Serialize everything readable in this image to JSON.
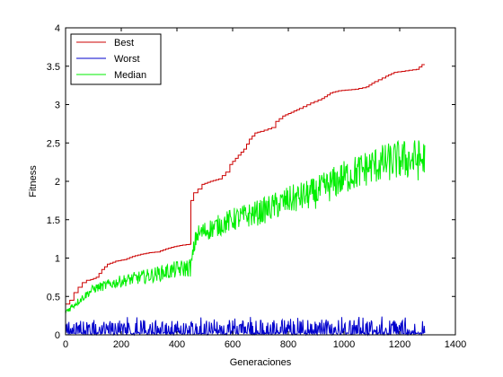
{
  "chart_data": {
    "type": "line",
    "title": "",
    "xlabel": "Generaciones",
    "ylabel": "Fitness",
    "xlim": [
      0,
      1400
    ],
    "ylim": [
      0,
      4
    ],
    "x_ticks": [
      0,
      200,
      400,
      600,
      800,
      1000,
      1200,
      1400
    ],
    "y_ticks": [
      0,
      0.5,
      1,
      1.5,
      2,
      2.5,
      3,
      3.5,
      4
    ],
    "y_tick_labels": [
      "0",
      "0.5",
      "1",
      "1.5",
      "2",
      "2.5",
      "3",
      "3.5",
      "4"
    ],
    "grid": false,
    "legend_position": "top-left",
    "series": [
      {
        "name": "Best",
        "color": "#cc0000",
        "step": true,
        "points": [
          [
            0,
            0.4
          ],
          [
            15,
            0.45
          ],
          [
            30,
            0.55
          ],
          [
            45,
            0.62
          ],
          [
            60,
            0.68
          ],
          [
            75,
            0.71
          ],
          [
            90,
            0.72
          ],
          [
            110,
            0.75
          ],
          [
            130,
            0.85
          ],
          [
            150,
            0.92
          ],
          [
            180,
            0.96
          ],
          [
            210,
            0.98
          ],
          [
            240,
            1.02
          ],
          [
            270,
            1.05
          ],
          [
            300,
            1.07
          ],
          [
            330,
            1.08
          ],
          [
            360,
            1.12
          ],
          [
            390,
            1.15
          ],
          [
            420,
            1.17
          ],
          [
            445,
            1.18
          ],
          [
            450,
            1.75
          ],
          [
            460,
            1.85
          ],
          [
            475,
            1.9
          ],
          [
            490,
            1.96
          ],
          [
            520,
            2.0
          ],
          [
            550,
            2.03
          ],
          [
            575,
            2.12
          ],
          [
            590,
            2.22
          ],
          [
            610,
            2.3
          ],
          [
            640,
            2.42
          ],
          [
            660,
            2.55
          ],
          [
            680,
            2.63
          ],
          [
            700,
            2.65
          ],
          [
            740,
            2.7
          ],
          [
            755,
            2.78
          ],
          [
            780,
            2.85
          ],
          [
            810,
            2.9
          ],
          [
            840,
            2.95
          ],
          [
            880,
            3.02
          ],
          [
            920,
            3.08
          ],
          [
            950,
            3.15
          ],
          [
            980,
            3.18
          ],
          [
            1040,
            3.2
          ],
          [
            1080,
            3.23
          ],
          [
            1110,
            3.3
          ],
          [
            1150,
            3.37
          ],
          [
            1180,
            3.42
          ],
          [
            1220,
            3.44
          ],
          [
            1260,
            3.46
          ],
          [
            1280,
            3.52
          ],
          [
            1290,
            3.52
          ]
        ]
      },
      {
        "name": "Worst",
        "color": "#0000cc",
        "noise": {
          "base": 0.06,
          "spread": 0.2,
          "x_end": 1290
        }
      },
      {
        "name": "Median",
        "color": "#00ee00",
        "noise_points": [
          [
            0,
            0.3
          ],
          [
            50,
            0.45
          ],
          [
            100,
            0.6
          ],
          [
            200,
            0.7
          ],
          [
            300,
            0.77
          ],
          [
            400,
            0.85
          ],
          [
            450,
            0.88
          ],
          [
            460,
            1.1
          ],
          [
            470,
            1.3
          ],
          [
            500,
            1.35
          ],
          [
            600,
            1.5
          ],
          [
            700,
            1.6
          ],
          [
            800,
            1.75
          ],
          [
            900,
            1.85
          ],
          [
            1000,
            2.05
          ],
          [
            1100,
            2.2
          ],
          [
            1200,
            2.28
          ],
          [
            1290,
            2.28
          ]
        ],
        "spread": [
          0.05,
          0.35
        ],
        "x_end": 1290
      }
    ]
  }
}
